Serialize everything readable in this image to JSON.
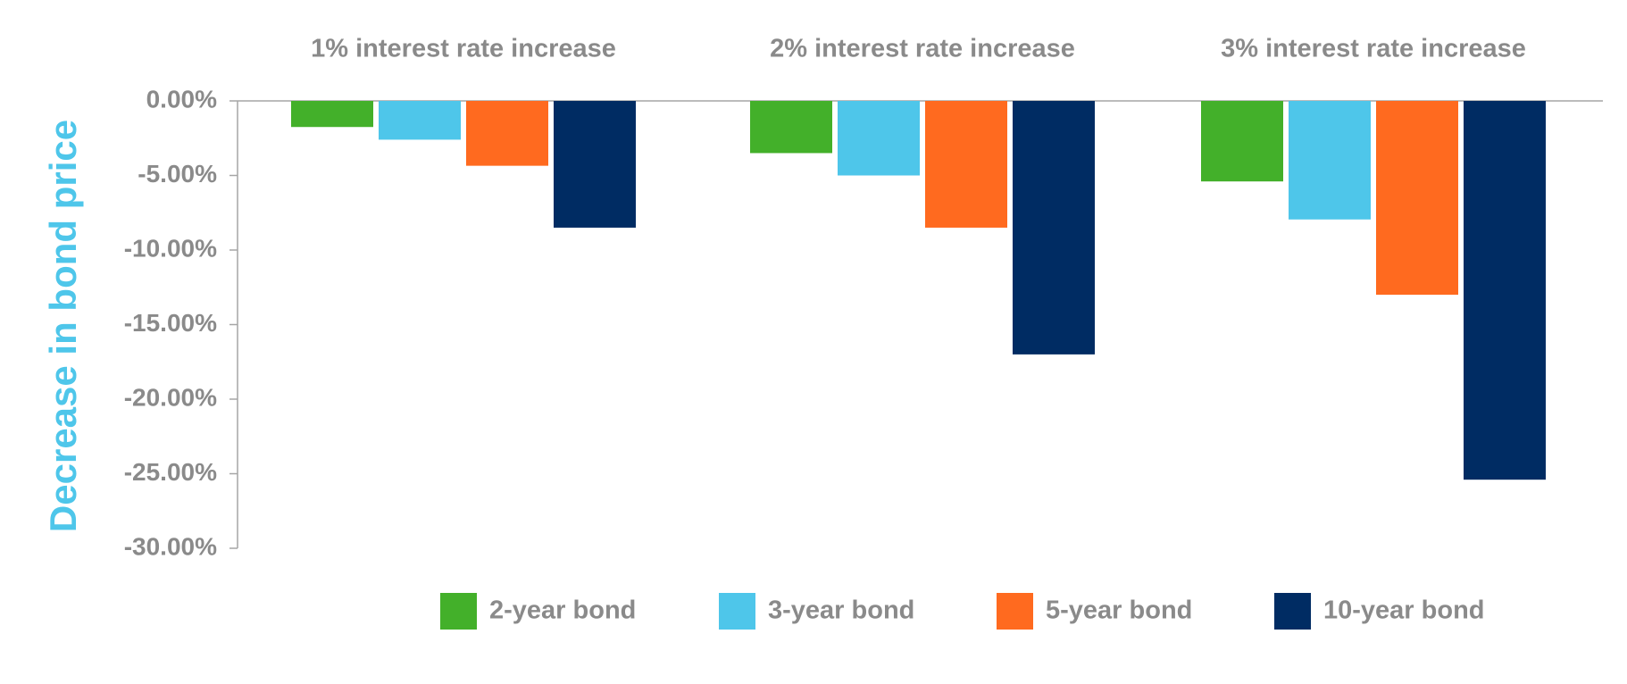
{
  "chart_data": {
    "type": "bar",
    "title": "",
    "xlabel": "",
    "ylabel": "Decrease in bond price",
    "categories": [
      "1% interest rate increase",
      "2% interest rate increase",
      "3% interest rate increase"
    ],
    "series": [
      {
        "name": "2-year bond",
        "color": "#43b02a",
        "values": [
          -1.75,
          -3.5,
          -5.4
        ]
      },
      {
        "name": "3-year bond",
        "color": "#4ec6ea",
        "values": [
          -2.6,
          -5.0,
          -7.95
        ]
      },
      {
        "name": "5-year bond",
        "color": "#ff6a1f",
        "values": [
          -4.35,
          -8.5,
          -13.0
        ]
      },
      {
        "name": "10-year bond",
        "color": "#002c63",
        "values": [
          -8.5,
          -17.0,
          -25.4
        ]
      }
    ],
    "ylim": [
      -30,
      0
    ],
    "yticks": [
      0,
      -5,
      -10,
      -15,
      -20,
      -25,
      -30
    ],
    "ytick_labels": [
      "0.00%",
      "-5.00%",
      "-10.00%",
      "-15.00%",
      "-20.00%",
      "-25.00%",
      "-30.00%"
    ],
    "category_labels_position": "top",
    "legend_position": "bottom",
    "grid": false,
    "colors": {
      "axis_label": "#4ec6ea",
      "tick_label": "#8a8a8a",
      "axis_line": "#a6a6a6"
    }
  }
}
